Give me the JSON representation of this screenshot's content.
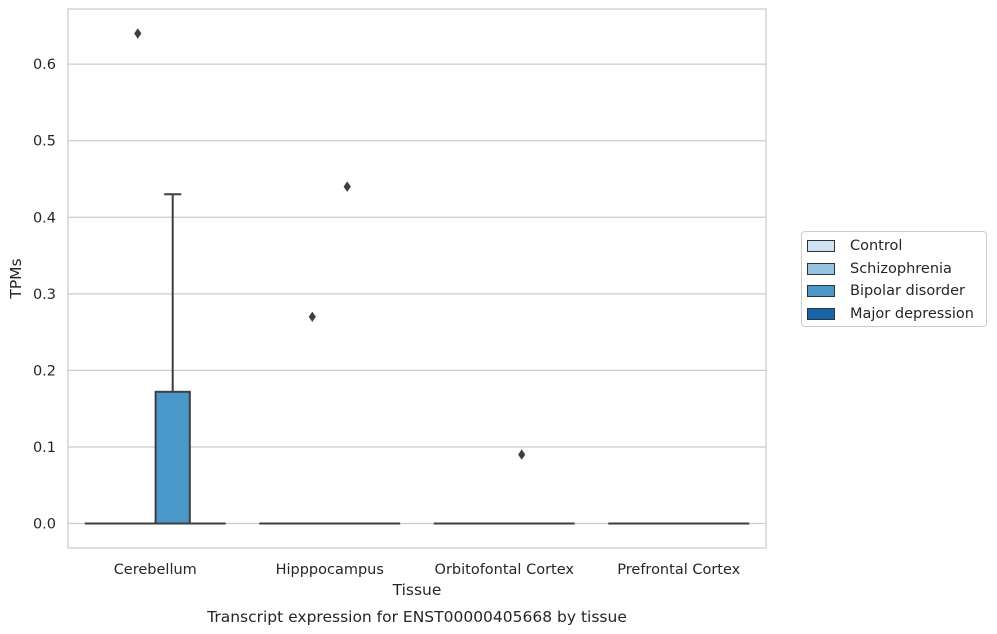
{
  "chart_data": {
    "type": "box",
    "title": "Transcript expression for ENST00000405668 by tissue",
    "xlabel": "Tissue",
    "ylabel": "TPMs",
    "ylim": [
      -0.032,
      0.672
    ],
    "yticks": [
      "0.0",
      "0.1",
      "0.2",
      "0.3",
      "0.4",
      "0.5",
      "0.6"
    ],
    "grid": "horizontal",
    "legend_position": "right",
    "categories": [
      "Cerebellum",
      "Hipppocampus",
      "Orbitofontal Cortex",
      "Prefrontal Cortex"
    ],
    "series": [
      {
        "name": "Control",
        "color": "#d0e1f2"
      },
      {
        "name": "Schizophrenia",
        "color": "#94c4df"
      },
      {
        "name": "Bipolar disorder",
        "color": "#4a98c9"
      },
      {
        "name": "Major depression",
        "color": "#1764ab"
      }
    ],
    "boxes": [
      {
        "category": "Cerebellum",
        "series": "Control",
        "min": 0,
        "q1": 0,
        "median": 0,
        "q3": 0,
        "max": 0,
        "outliers": []
      },
      {
        "category": "Cerebellum",
        "series": "Schizophrenia",
        "min": 0,
        "q1": 0,
        "median": 0,
        "q3": 0,
        "max": 0,
        "outliers": [
          0.64
        ]
      },
      {
        "category": "Cerebellum",
        "series": "Bipolar disorder",
        "min": 0,
        "q1": 0,
        "median": 0,
        "q3": 0.172,
        "max": 0.43,
        "outliers": []
      },
      {
        "category": "Cerebellum",
        "series": "Major depression",
        "min": 0,
        "q1": 0,
        "median": 0,
        "q3": 0,
        "max": 0,
        "outliers": []
      },
      {
        "category": "Hipppocampus",
        "series": "Control",
        "min": 0,
        "q1": 0,
        "median": 0,
        "q3": 0,
        "max": 0,
        "outliers": []
      },
      {
        "category": "Hipppocampus",
        "series": "Schizophrenia",
        "min": 0,
        "q1": 0,
        "median": 0,
        "q3": 0,
        "max": 0,
        "outliers": [
          0.27
        ]
      },
      {
        "category": "Hipppocampus",
        "series": "Bipolar disorder",
        "min": 0,
        "q1": 0,
        "median": 0,
        "q3": 0,
        "max": 0,
        "outliers": [
          0.44
        ]
      },
      {
        "category": "Hipppocampus",
        "series": "Major depression",
        "min": 0,
        "q1": 0,
        "median": 0,
        "q3": 0,
        "max": 0,
        "outliers": []
      },
      {
        "category": "Orbitofontal Cortex",
        "series": "Control",
        "min": 0,
        "q1": 0,
        "median": 0,
        "q3": 0,
        "max": 0,
        "outliers": []
      },
      {
        "category": "Orbitofontal Cortex",
        "series": "Schizophrenia",
        "min": 0,
        "q1": 0,
        "median": 0,
        "q3": 0,
        "max": 0,
        "outliers": []
      },
      {
        "category": "Orbitofontal Cortex",
        "series": "Bipolar disorder",
        "min": 0,
        "q1": 0,
        "median": 0,
        "q3": 0,
        "max": 0,
        "outliers": [
          0.09
        ]
      },
      {
        "category": "Orbitofontal Cortex",
        "series": "Major depression",
        "min": 0,
        "q1": 0,
        "median": 0,
        "q3": 0,
        "max": 0,
        "outliers": []
      },
      {
        "category": "Prefrontal Cortex",
        "series": "Control",
        "min": 0,
        "q1": 0,
        "median": 0,
        "q3": 0,
        "max": 0,
        "outliers": []
      },
      {
        "category": "Prefrontal Cortex",
        "series": "Schizophrenia",
        "min": 0,
        "q1": 0,
        "median": 0,
        "q3": 0,
        "max": 0,
        "outliers": []
      },
      {
        "category": "Prefrontal Cortex",
        "series": "Bipolar disorder",
        "min": 0,
        "q1": 0,
        "median": 0,
        "q3": 0,
        "max": 0,
        "outliers": []
      },
      {
        "category": "Prefrontal Cortex",
        "series": "Major depression",
        "min": 0,
        "q1": 0,
        "median": 0,
        "q3": 0,
        "max": 0,
        "outliers": []
      }
    ]
  }
}
